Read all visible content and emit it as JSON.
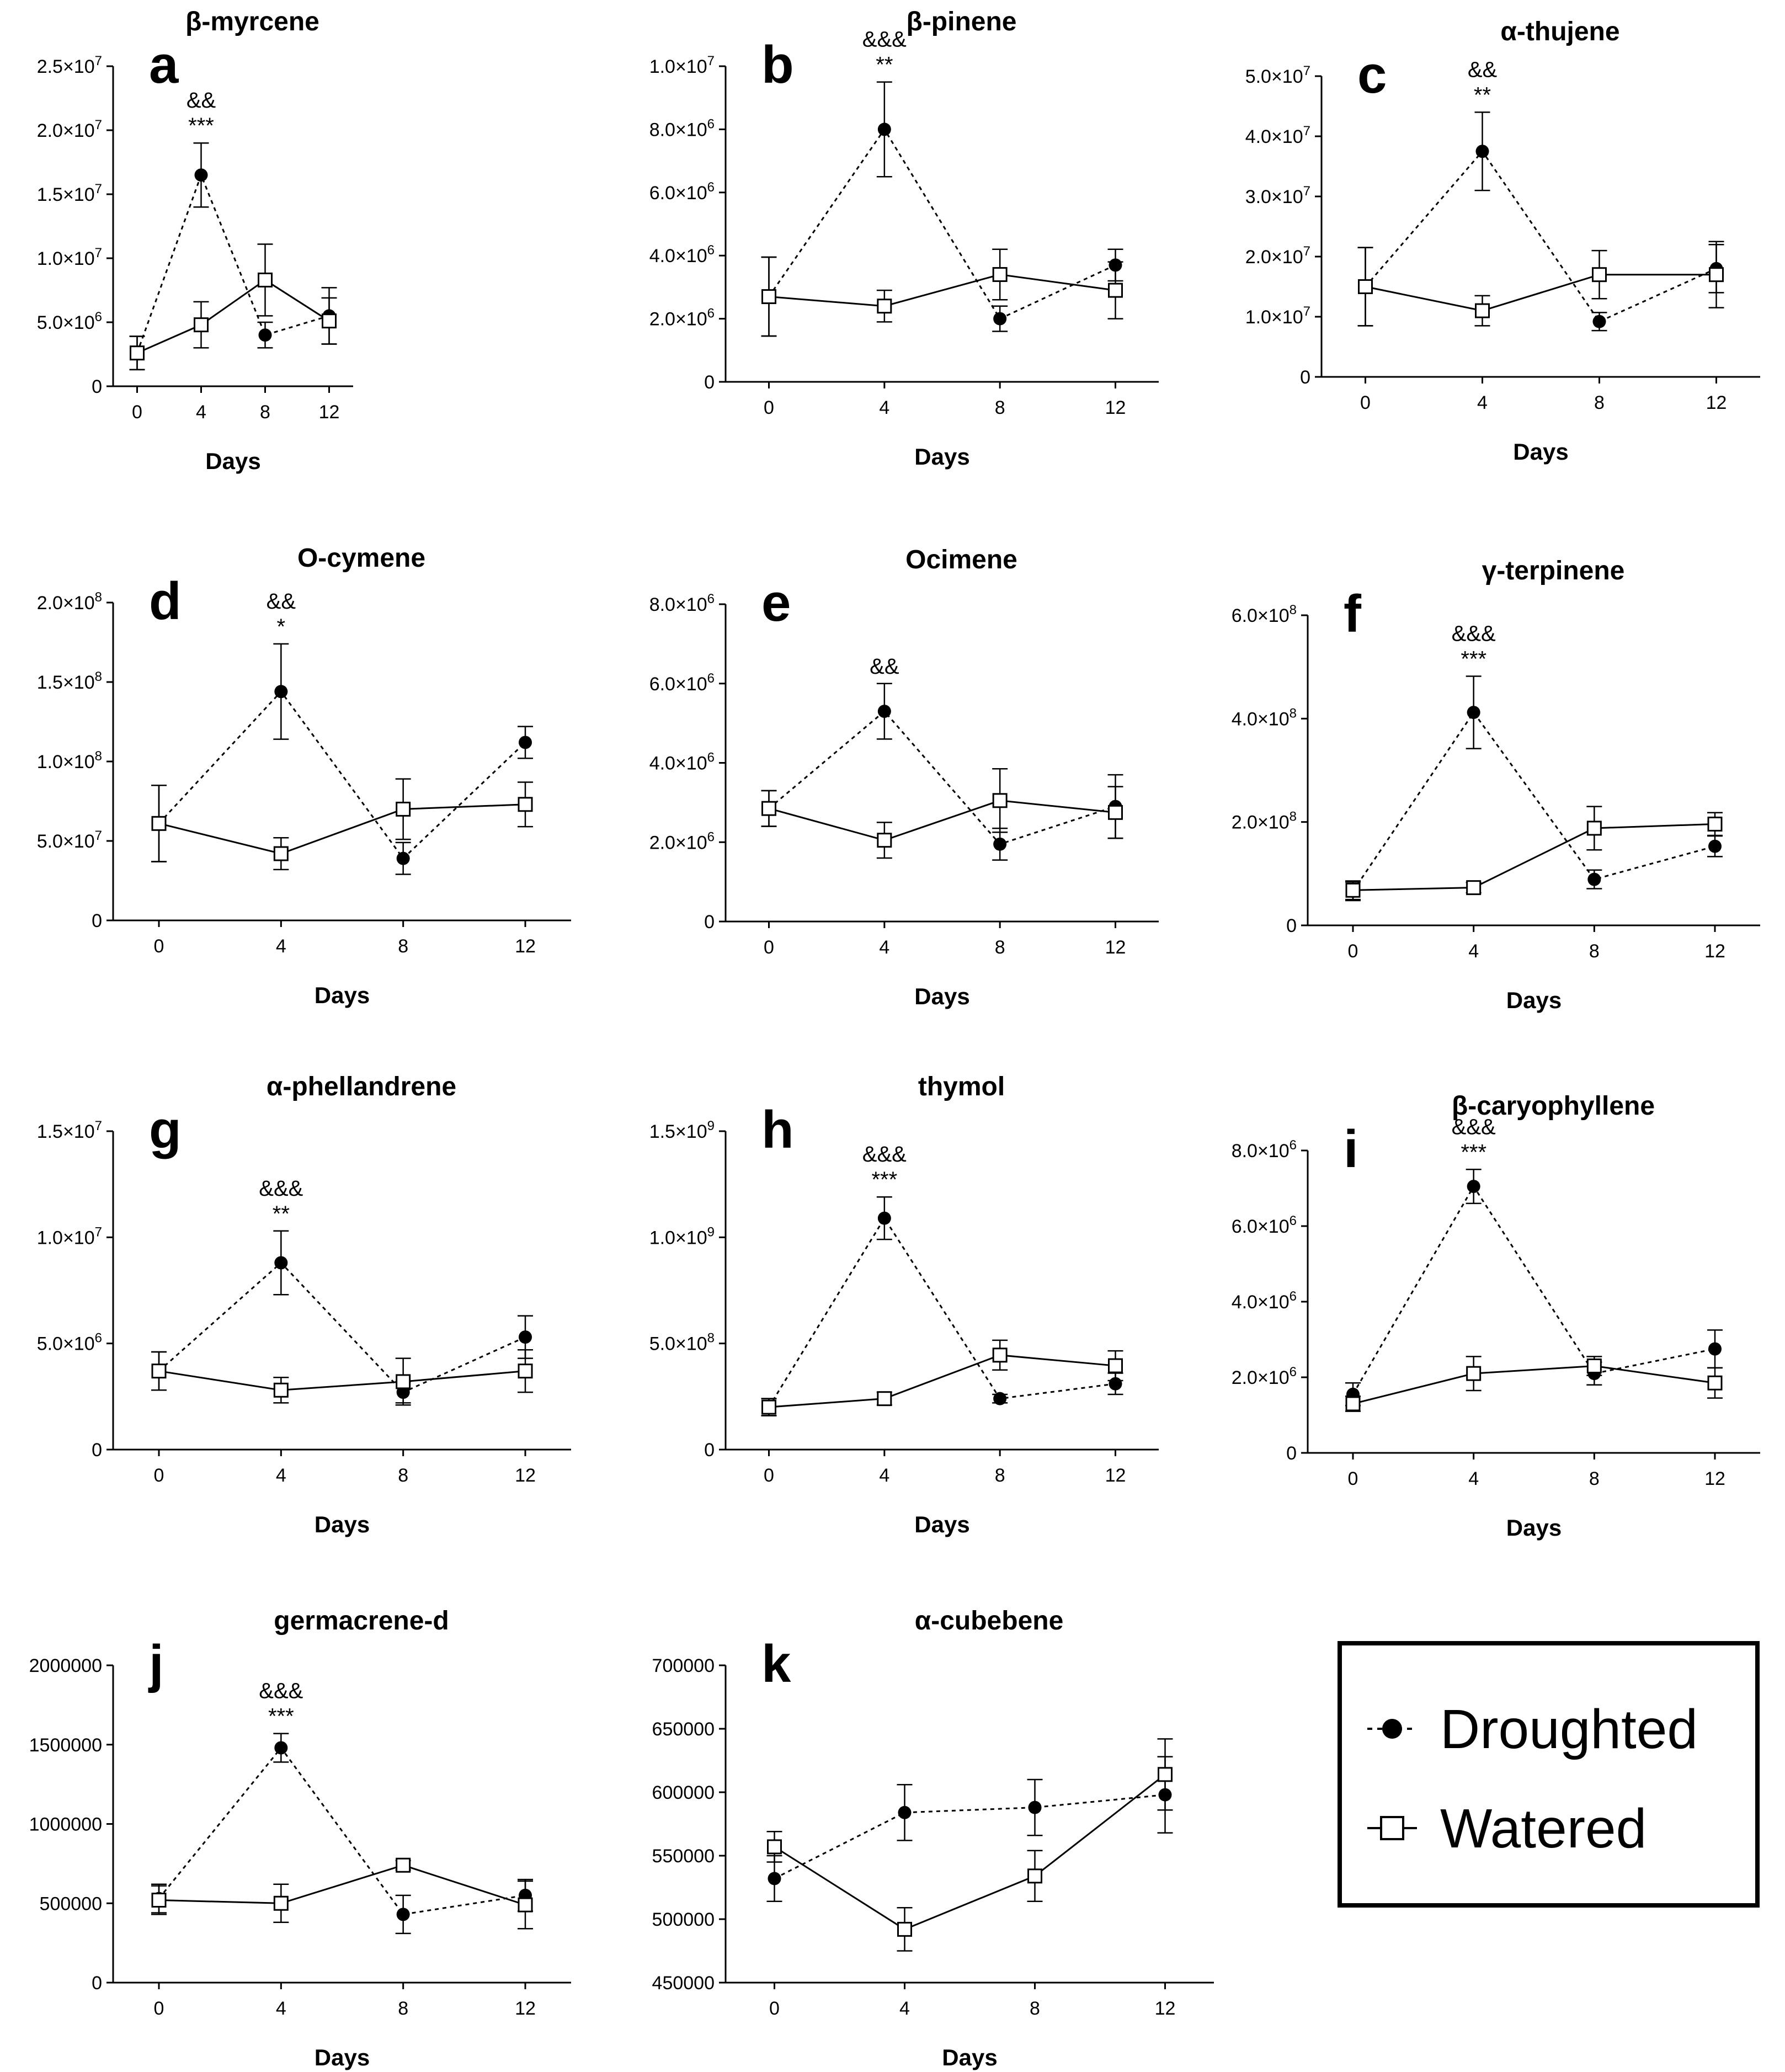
{
  "chart_data": [
    {
      "panel": "a",
      "type": "line",
      "title": "β-myrcene",
      "xlabel": "Days",
      "ylabel": "",
      "x": [
        0,
        4,
        8,
        12
      ],
      "ylim": [
        0,
        25000000
      ],
      "yticks": [
        0,
        5000000,
        10000000,
        15000000,
        20000000,
        25000000
      ],
      "ytick_labels": [
        "0",
        "5.0×10^6",
        "1.0×10^7",
        "1.5×10^7",
        "2.0×10^7",
        "2.5×10^7"
      ],
      "annotation": [
        "&&",
        "***"
      ],
      "series": [
        {
          "name": "Droughted",
          "values": [
            2600000,
            16500000,
            4000000,
            5500000
          ],
          "errors": [
            1300000,
            2500000,
            1000000,
            2200000
          ]
        },
        {
          "name": "Watered",
          "values": [
            2600000,
            4800000,
            8300000,
            5100000
          ],
          "errors": [
            1300000,
            1800000,
            2800000,
            1800000
          ]
        }
      ]
    },
    {
      "panel": "b",
      "type": "line",
      "title": "β-pinene",
      "xlabel": "Days",
      "ylabel": "",
      "x": [
        0,
        4,
        8,
        12
      ],
      "ylim": [
        0,
        10000000
      ],
      "yticks": [
        0,
        2000000,
        4000000,
        6000000,
        8000000,
        10000000
      ],
      "ytick_labels": [
        "0",
        "2.0×10^6",
        "4.0×10^6",
        "6.0×10^6",
        "8.0×10^6",
        "1.0×10^7"
      ],
      "annotation": [
        "&&&",
        "**"
      ],
      "series": [
        {
          "name": "Droughted",
          "values": [
            2700000,
            8000000,
            2000000,
            3700000
          ],
          "errors": [
            1250000,
            1500000,
            400000,
            500000
          ]
        },
        {
          "name": "Watered",
          "values": [
            2700000,
            2400000,
            3400000,
            2900000
          ],
          "errors": [
            1250000,
            500000,
            800000,
            900000
          ]
        }
      ]
    },
    {
      "panel": "c",
      "type": "line",
      "title": "α-thujene",
      "xlabel": "Days",
      "ylabel": "",
      "x": [
        0,
        4,
        8,
        12
      ],
      "ylim": [
        0,
        50000000
      ],
      "yticks": [
        0,
        10000000,
        20000000,
        30000000,
        40000000,
        50000000
      ],
      "ytick_labels": [
        "0",
        "1.0×10^7",
        "2.0×10^7",
        "3.0×10^7",
        "4.0×10^7",
        "5.0×10^7"
      ],
      "annotation": [
        "&&",
        "**"
      ],
      "series": [
        {
          "name": "Droughted",
          "values": [
            15000000,
            37500000,
            9200000,
            18000000
          ],
          "errors": [
            6500000,
            6500000,
            1500000,
            4000000
          ]
        },
        {
          "name": "Watered",
          "values": [
            15000000,
            11000000,
            17000000,
            17000000
          ],
          "errors": [
            6500000,
            2500000,
            4000000,
            5500000
          ]
        }
      ]
    },
    {
      "panel": "d",
      "type": "line",
      "title": "O-cymene",
      "xlabel": "Days",
      "ylabel": "",
      "x": [
        0,
        4,
        8,
        12
      ],
      "ylim": [
        0,
        200000000
      ],
      "yticks": [
        0,
        50000000,
        100000000,
        150000000,
        200000000
      ],
      "ytick_labels": [
        "0",
        "5.0×10^7",
        "1.0×10^8",
        "1.5×10^8",
        "2.0×10^8"
      ],
      "annotation": [
        "&&",
        "*"
      ],
      "series": [
        {
          "name": "Droughted",
          "values": [
            61000000,
            144000000,
            39000000,
            112000000
          ],
          "errors": [
            24000000,
            30000000,
            10000000,
            10000000
          ]
        },
        {
          "name": "Watered",
          "values": [
            61000000,
            42000000,
            70000000,
            73000000
          ],
          "errors": [
            24000000,
            10000000,
            19000000,
            14000000
          ]
        }
      ]
    },
    {
      "panel": "e",
      "type": "line",
      "title": "Ocimene",
      "xlabel": "Days",
      "ylabel": "",
      "x": [
        0,
        4,
        8,
        12
      ],
      "ylim": [
        0,
        8000000
      ],
      "yticks": [
        0,
        2000000,
        4000000,
        6000000,
        8000000
      ],
      "ytick_labels": [
        "0",
        "2.0×10^6",
        "4.0×10^6",
        "6.0×10^6",
        "8.0×10^6"
      ],
      "annotation": [
        "&&"
      ],
      "series": [
        {
          "name": "Droughted",
          "values": [
            2850000,
            5300000,
            1950000,
            2900000
          ],
          "errors": [
            450000,
            700000,
            400000,
            800000
          ]
        },
        {
          "name": "Watered",
          "values": [
            2850000,
            2050000,
            3050000,
            2750000
          ],
          "errors": [
            450000,
            450000,
            800000,
            650000
          ]
        }
      ]
    },
    {
      "panel": "f",
      "type": "line",
      "title": "γ-terpinene",
      "xlabel": "Days",
      "ylabel": "",
      "x": [
        0,
        4,
        8,
        12
      ],
      "ylim": [
        0,
        600000000
      ],
      "yticks": [
        0,
        200000000,
        400000000,
        600000000
      ],
      "ytick_labels": [
        "0",
        "2.0×10^8",
        "4.0×10^8",
        "6.0×10^8"
      ],
      "annotation": [
        "&&&",
        "***"
      ],
      "series": [
        {
          "name": "Droughted",
          "values": [
            66000000,
            412000000,
            89000000,
            153000000
          ],
          "errors": [
            18000000,
            70000000,
            18000000,
            20000000
          ]
        },
        {
          "name": "Watered",
          "values": [
            68000000,
            73000000,
            188000000,
            196000000
          ],
          "errors": [
            18000000,
            10000000,
            42000000,
            22000000
          ]
        }
      ]
    },
    {
      "panel": "g",
      "type": "line",
      "title": "α-phellandrene",
      "xlabel": "Days",
      "ylabel": "",
      "x": [
        0,
        4,
        8,
        12
      ],
      "ylim": [
        0,
        15000000
      ],
      "yticks": [
        0,
        5000000,
        10000000,
        15000000
      ],
      "ytick_labels": [
        "0",
        "5.0×10^6",
        "1.0×10^7",
        "1.5×10^7"
      ],
      "annotation": [
        "&&&",
        "**"
      ],
      "series": [
        {
          "name": "Droughted",
          "values": [
            3700000,
            8800000,
            2700000,
            5300000
          ],
          "errors": [
            900000,
            1500000,
            500000,
            1000000
          ]
        },
        {
          "name": "Watered",
          "values": [
            3700000,
            2800000,
            3200000,
            3700000
          ],
          "errors": [
            900000,
            600000,
            1100000,
            1000000
          ]
        }
      ]
    },
    {
      "panel": "h",
      "type": "line",
      "title": "thymol",
      "xlabel": "Days",
      "ylabel": "",
      "x": [
        0,
        4,
        8,
        12
      ],
      "ylim": [
        0,
        1500000000
      ],
      "yticks": [
        0,
        500000000,
        1000000000,
        1500000000
      ],
      "ytick_labels": [
        "0",
        "5.0×10^8",
        "1.0×10^9",
        "1.5×10^9"
      ],
      "annotation": [
        "&&&",
        "***"
      ],
      "series": [
        {
          "name": "Droughted",
          "values": [
            200000000,
            1090000000,
            240000000,
            310000000
          ],
          "errors": [
            40000000,
            100000000,
            20000000,
            50000000
          ]
        },
        {
          "name": "Watered",
          "values": [
            200000000,
            240000000,
            445000000,
            395000000
          ],
          "errors": [
            40000000,
            30000000,
            70000000,
            70000000
          ]
        }
      ]
    },
    {
      "panel": "i",
      "type": "line",
      "title": "β-caryophyllene",
      "xlabel": "Days",
      "ylabel": "",
      "x": [
        0,
        4,
        8,
        12
      ],
      "ylim": [
        0,
        8000000
      ],
      "yticks": [
        0,
        2000000,
        4000000,
        6000000,
        8000000
      ],
      "ytick_labels": [
        "0",
        "2.0×10^6",
        "4.0×10^6",
        "6.0×10^6",
        "8.0×10^6"
      ],
      "annotation": [
        "&&&",
        "***"
      ],
      "series": [
        {
          "name": "Droughted",
          "values": [
            1550000,
            7050000,
            2100000,
            2750000
          ],
          "errors": [
            300000,
            450000,
            300000,
            500000
          ]
        },
        {
          "name": "Watered",
          "values": [
            1300000,
            2100000,
            2300000,
            1850000
          ],
          "errors": [
            200000,
            450000,
            250000,
            400000
          ]
        }
      ]
    },
    {
      "panel": "j",
      "type": "line",
      "title": "germacrene-d",
      "xlabel": "Days",
      "ylabel": "",
      "x": [
        0,
        4,
        8,
        12
      ],
      "ylim": [
        0,
        2000000
      ],
      "yticks": [
        0,
        500000,
        1000000,
        1500000,
        2000000
      ],
      "ytick_labels": [
        "0",
        "500000",
        "1000000",
        "1500000",
        "2000000"
      ],
      "annotation": [
        "&&&",
        "***"
      ],
      "series": [
        {
          "name": "Droughted",
          "values": [
            530000,
            1480000,
            430000,
            550000
          ],
          "errors": [
            90000,
            90000,
            120000,
            100000
          ]
        },
        {
          "name": "Watered",
          "values": [
            520000,
            500000,
            740000,
            490000
          ],
          "errors": [
            90000,
            120000,
            30000,
            150000
          ]
        }
      ]
    },
    {
      "panel": "k",
      "type": "line",
      "title": "α-cubebene",
      "xlabel": "Days",
      "ylabel": "",
      "x": [
        0,
        4,
        8,
        12
      ],
      "ylim": [
        450000,
        700000
      ],
      "yticks": [
        450000,
        500000,
        550000,
        600000,
        650000,
        700000
      ],
      "ytick_labels": [
        "450000",
        "500000",
        "550000",
        "600000",
        "650000",
        "700000"
      ],
      "annotation": [],
      "series": [
        {
          "name": "Droughted",
          "values": [
            532000,
            584000,
            588000,
            598000
          ],
          "errors": [
            18000,
            22000,
            22000,
            30000
          ]
        },
        {
          "name": "Watered",
          "values": [
            557000,
            492000,
            534000,
            614000
          ],
          "errors": [
            12000,
            17000,
            20000,
            28000
          ]
        }
      ]
    }
  ],
  "legend": {
    "items": [
      {
        "label": "Droughted",
        "style": "dashed-line-filled-circle"
      },
      {
        "label": "Watered",
        "style": "solid-line-open-square"
      }
    ],
    "placement": "bottom-right"
  }
}
